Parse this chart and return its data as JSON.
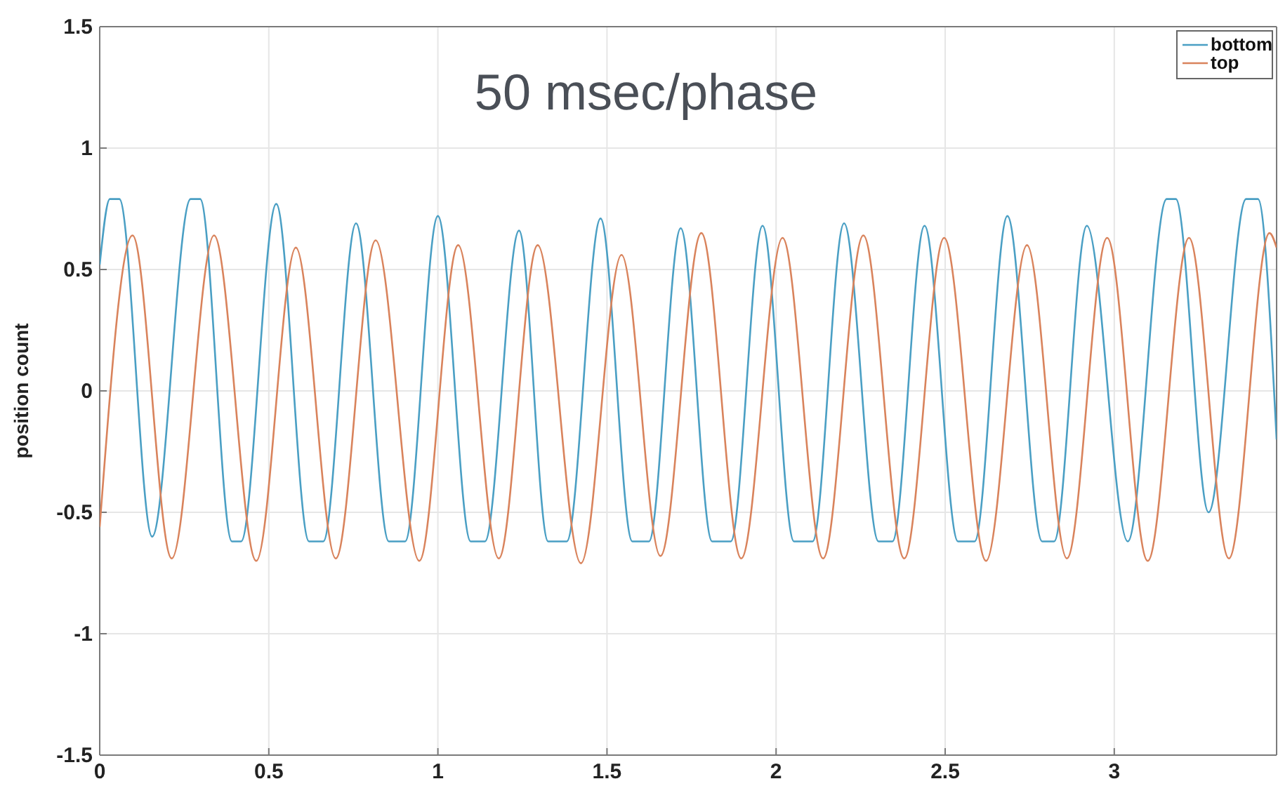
{
  "chart_data": {
    "type": "line",
    "title": "50 msec/phase",
    "ylabel": "position count",
    "xlim": [
      0,
      3.48
    ],
    "ylim": [
      -1.5,
      1.5
    ],
    "xticks": [
      0,
      0.5,
      1,
      1.5,
      2,
      2.5,
      3
    ],
    "yticks": [
      -1.5,
      -1,
      -0.5,
      0,
      0.5,
      1,
      1.5
    ],
    "grid": true,
    "legend": "top right",
    "series": [
      {
        "name": "bottom",
        "color": "#4a9fc4",
        "x": [
          0,
          0.03,
          0.058,
          0.155,
          0.269,
          0.297,
          0.391,
          0.418,
          0.522,
          0.619,
          0.661,
          0.758,
          0.855,
          0.903,
          1.0,
          1.097,
          1.139,
          1.24,
          1.326,
          1.381,
          1.481,
          1.575,
          1.624,
          1.718,
          1.811,
          1.866,
          1.96,
          2.053,
          2.108,
          2.201,
          2.303,
          2.344,
          2.439,
          2.538,
          2.587,
          2.684,
          2.787,
          2.822,
          2.919,
          3.04,
          3.155,
          3.182,
          3.279,
          3.39,
          3.425,
          3.48
        ],
        "values": [
          0.52,
          0.79,
          0.79,
          -0.6,
          0.79,
          0.79,
          -0.62,
          -0.62,
          0.77,
          -0.62,
          -0.62,
          0.69,
          -0.62,
          -0.62,
          0.72,
          -0.62,
          -0.62,
          0.66,
          -0.62,
          -0.62,
          0.71,
          -0.62,
          -0.62,
          0.67,
          -0.62,
          -0.62,
          0.68,
          -0.62,
          -0.62,
          0.69,
          -0.62,
          -0.62,
          0.68,
          -0.62,
          -0.62,
          0.72,
          -0.62,
          -0.62,
          0.68,
          -0.62,
          0.79,
          0.79,
          -0.5,
          0.79,
          0.79,
          -0.2
        ]
      },
      {
        "name": "top",
        "color": "#d9835c",
        "x": [
          0,
          0.097,
          0.213,
          0.338,
          0.463,
          0.58,
          0.698,
          0.816,
          0.945,
          1.06,
          1.18,
          1.295,
          1.423,
          1.543,
          1.658,
          1.779,
          1.897,
          2.019,
          2.139,
          2.258,
          2.379,
          2.497,
          2.621,
          2.742,
          2.86,
          2.979,
          3.099,
          3.221,
          3.339,
          3.459,
          3.48
        ],
        "values": [
          -0.56,
          0.64,
          -0.69,
          0.64,
          -0.7,
          0.59,
          -0.69,
          0.62,
          -0.7,
          0.6,
          -0.69,
          0.6,
          -0.71,
          0.56,
          -0.68,
          0.65,
          -0.69,
          0.63,
          -0.69,
          0.64,
          -0.69,
          0.63,
          -0.7,
          0.6,
          -0.69,
          0.63,
          -0.7,
          0.63,
          -0.69,
          0.65,
          0.59
        ]
      }
    ]
  }
}
